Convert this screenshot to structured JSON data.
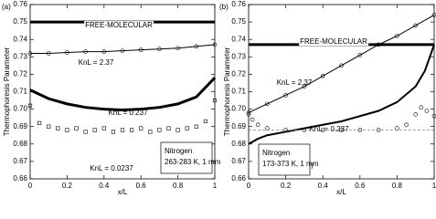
{
  "chart_data": [
    {
      "type": "line",
      "panel_label": "(a)",
      "xlabel": "x/L",
      "ylabel": "Thermophoresis Parameter",
      "xlim": [
        0,
        1
      ],
      "ylim": [
        0.66,
        0.76
      ],
      "xticks": [
        0,
        0.2,
        0.4,
        0.6,
        0.8,
        1
      ],
      "yticks": [
        0.66,
        0.67,
        0.68,
        0.69,
        {
          "value": 0.7,
          "label": "0.70"
        },
        0.71,
        0.72,
        0.73,
        0.74,
        0.75,
        0.76
      ],
      "box": [
        "Nitrogen",
        "263-283 K, 1 mm"
      ],
      "series": [
        {
          "name": "FREE-MOLECULAR",
          "color": "#000000",
          "width": 3,
          "x": [
            0,
            1
          ],
          "values": [
            0.75,
            0.75
          ]
        },
        {
          "name": "KnL = 2.37",
          "color": "#000000",
          "width": 1,
          "marker": "circle",
          "x": [
            0,
            0.1,
            0.2,
            0.3,
            0.4,
            0.5,
            0.6,
            0.7,
            0.8,
            0.9,
            1
          ],
          "values": [
            0.732,
            0.732,
            0.7325,
            0.733,
            0.733,
            0.7335,
            0.734,
            0.7345,
            0.735,
            0.736,
            0.737
          ]
        },
        {
          "name": "KnL = 0.237",
          "color": "#000000",
          "width": 3,
          "x": [
            0,
            0.1,
            0.2,
            0.3,
            0.4,
            0.5,
            0.6,
            0.7,
            0.8,
            0.9,
            1
          ],
          "values": [
            0.711,
            0.706,
            0.703,
            0.701,
            0.7,
            0.6995,
            0.7,
            0.701,
            0.703,
            0.707,
            0.718
          ]
        },
        {
          "name": "KnL = 0.0237",
          "color": "#000000",
          "marker": "square",
          "x": [
            0,
            0.05,
            0.1,
            0.15,
            0.2,
            0.25,
            0.3,
            0.35,
            0.4,
            0.45,
            0.5,
            0.55,
            0.6,
            0.65,
            0.7,
            0.75,
            0.8,
            0.85,
            0.9,
            0.95,
            1
          ],
          "values": [
            0.702,
            0.692,
            0.69,
            0.689,
            0.688,
            0.689,
            0.687,
            0.688,
            0.689,
            0.687,
            0.688,
            0.688,
            0.689,
            0.687,
            0.688,
            0.689,
            0.688,
            0.689,
            0.69,
            0.693,
            0.705
          ]
        }
      ]
    },
    {
      "type": "line",
      "panel_label": "(b)",
      "xlabel": "x/L",
      "ylabel": "Thermophoresis Parameter",
      "xlim": [
        0,
        1
      ],
      "ylim": [
        0.66,
        0.76
      ],
      "xticks": [
        0,
        0.2,
        0.4,
        0.6,
        0.8,
        1
      ],
      "yticks": [
        0.66,
        0.67,
        0.68,
        0.69,
        {
          "value": 0.7,
          "label": "0.70"
        },
        0.71,
        0.72,
        0.73,
        0.74,
        0.75,
        0.76
      ],
      "box": [
        "Nitrogen",
        "173-373 K, 1 mm"
      ],
      "series": [
        {
          "name": "FREE-MOLECULAR",
          "color": "#000000",
          "width": 3,
          "x": [
            0,
            1
          ],
          "values": [
            0.737,
            0.737
          ]
        },
        {
          "name": "KnL = 2.37",
          "color": "#000000",
          "width": 1,
          "marker": "circle",
          "x": [
            0,
            0.1,
            0.2,
            0.3,
            0.4,
            0.5,
            0.6,
            0.7,
            0.8,
            0.9,
            1
          ],
          "values": [
            0.698,
            0.703,
            0.708,
            0.713,
            0.719,
            0.725,
            0.731,
            0.737,
            0.742,
            0.748,
            0.754
          ]
        },
        {
          "name": "KnL = 0.237",
          "color": "#000000",
          "width": 2,
          "x": [
            0,
            0.05,
            0.1,
            0.2,
            0.3,
            0.4,
            0.5,
            0.6,
            0.7,
            0.8,
            0.9,
            0.95,
            1
          ],
          "values": [
            0.68,
            0.683,
            0.685,
            0.687,
            0.689,
            0.691,
            0.693,
            0.696,
            0.699,
            0.704,
            0.713,
            0.722,
            0.737
          ]
        },
        {
          "name": "KnL = 0.0237",
          "color": "#000000",
          "marker": "circle",
          "x": [
            0,
            0.02,
            0.05,
            0.1,
            0.2,
            0.3,
            0.4,
            0.5,
            0.6,
            0.7,
            0.8,
            0.85,
            0.9,
            0.93,
            0.96,
            1
          ],
          "values": [
            0.697,
            0.694,
            0.691,
            0.689,
            0.688,
            0.688,
            0.688,
            0.688,
            0.688,
            0.688,
            0.689,
            0.691,
            0.697,
            0.701,
            0.699,
            0.696
          ]
        },
        {
          "color": "#888888",
          "width": 0.8,
          "dash": true,
          "x": [
            0,
            1
          ],
          "values": [
            0.688,
            0.688
          ]
        }
      ]
    }
  ]
}
